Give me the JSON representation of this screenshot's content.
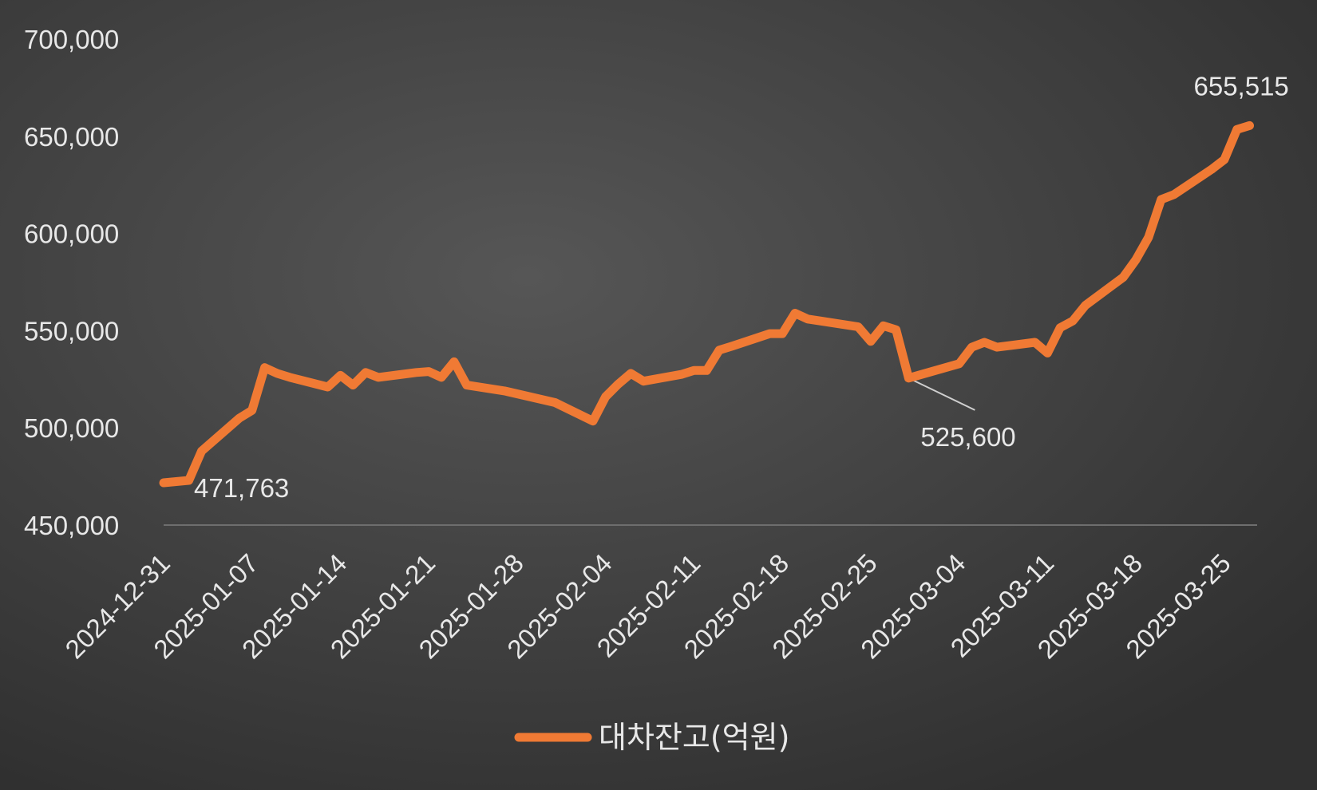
{
  "chart_data": {
    "type": "line",
    "title": "",
    "xlabel": "",
    "ylabel": "",
    "ylim": [
      450000,
      700000
    ],
    "yticks": [
      "450,000",
      "500,000",
      "550,000",
      "600,000",
      "650,000",
      "700,000"
    ],
    "xticks": [
      "2024-12-31",
      "2025-01-07",
      "2025-01-14",
      "2025-01-21",
      "2025-01-28",
      "2025-02-04",
      "2025-02-11",
      "2025-02-18",
      "2025-02-25",
      "2025-03-04",
      "2025-03-11",
      "2025-03-18",
      "2025-03-25"
    ],
    "legend": {
      "position": "bottom"
    },
    "grid": false,
    "colors": {
      "line": "#f07a34",
      "text": "#e8e8e8",
      "axis": "#6e6e6e"
    },
    "series": [
      {
        "name": "대차잔고(억원)",
        "points": [
          [
            "2024-12-31",
            471763
          ],
          [
            "2025-01-02",
            473000
          ],
          [
            "2025-01-03",
            488000
          ],
          [
            "2025-01-06",
            505000
          ],
          [
            "2025-01-07",
            509000
          ],
          [
            "2025-01-08",
            531000
          ],
          [
            "2025-01-09",
            528000
          ],
          [
            "2025-01-10",
            526000
          ],
          [
            "2025-01-13",
            521000
          ],
          [
            "2025-01-14",
            527000
          ],
          [
            "2025-01-15",
            522000
          ],
          [
            "2025-01-16",
            528500
          ],
          [
            "2025-01-17",
            526000
          ],
          [
            "2025-01-20",
            528500
          ],
          [
            "2025-01-21",
            529000
          ],
          [
            "2025-01-22",
            526000
          ],
          [
            "2025-01-23",
            534000
          ],
          [
            "2025-01-24",
            522000
          ],
          [
            "2025-01-27",
            519000
          ],
          [
            "2025-01-31",
            513000
          ],
          [
            "2025-02-03",
            503500
          ],
          [
            "2025-02-04",
            516000
          ],
          [
            "2025-02-05",
            522500
          ],
          [
            "2025-02-06",
            528000
          ],
          [
            "2025-02-07",
            524000
          ],
          [
            "2025-02-10",
            527500
          ],
          [
            "2025-02-11",
            529500
          ],
          [
            "2025-02-12",
            529500
          ],
          [
            "2025-02-13",
            540000
          ],
          [
            "2025-02-14",
            542000
          ],
          [
            "2025-02-17",
            548500
          ],
          [
            "2025-02-18",
            548500
          ],
          [
            "2025-02-19",
            559000
          ],
          [
            "2025-02-20",
            556000
          ],
          [
            "2025-02-21",
            555000
          ],
          [
            "2025-02-24",
            552000
          ],
          [
            "2025-02-25",
            544500
          ],
          [
            "2025-02-26",
            552500
          ],
          [
            "2025-02-27",
            550500
          ],
          [
            "2025-02-28",
            525600
          ],
          [
            "2025-03-04",
            533000
          ],
          [
            "2025-03-05",
            541500
          ],
          [
            "2025-03-06",
            544000
          ],
          [
            "2025-03-07",
            541500
          ],
          [
            "2025-03-10",
            544000
          ],
          [
            "2025-03-11",
            538500
          ],
          [
            "2025-03-12",
            551500
          ],
          [
            "2025-03-13",
            555000
          ],
          [
            "2025-03-14",
            563000
          ],
          [
            "2025-03-17",
            577500
          ],
          [
            "2025-03-18",
            586500
          ],
          [
            "2025-03-19",
            598000
          ],
          [
            "2025-03-20",
            617500
          ],
          [
            "2025-03-21",
            620000
          ],
          [
            "2025-03-24",
            633000
          ],
          [
            "2025-03-25",
            638000
          ],
          [
            "2025-03-26",
            653500
          ],
          [
            "2025-03-27",
            655515
          ]
        ]
      }
    ],
    "annotations": [
      {
        "text": "471,763",
        "x": "2024-12-31",
        "y": 471763
      },
      {
        "text": "525,600",
        "x": "2025-02-28",
        "y": 525600
      },
      {
        "text": "655,515",
        "x": "2025-03-27",
        "y": 655515
      }
    ]
  }
}
